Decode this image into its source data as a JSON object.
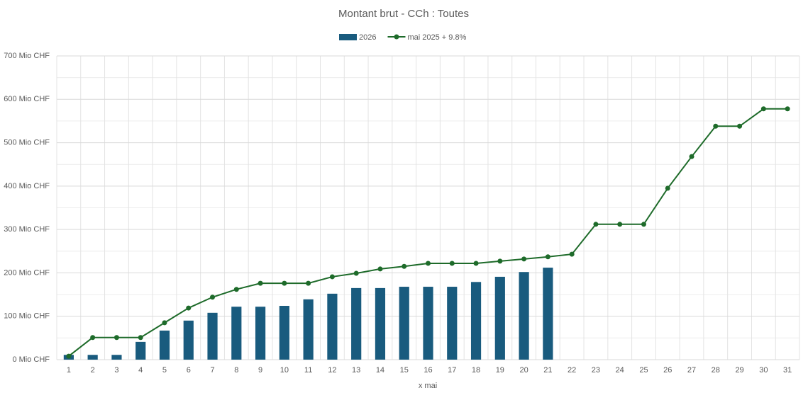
{
  "chart_data": {
    "type": "bar_line",
    "title": "Montant brut - CCh : Toutes",
    "x_label": "x mai",
    "categories": [
      "1",
      "2",
      "3",
      "4",
      "5",
      "6",
      "7",
      "8",
      "9",
      "10",
      "11",
      "12",
      "13",
      "14",
      "15",
      "16",
      "17",
      "18",
      "19",
      "20",
      "21",
      "22",
      "23",
      "24",
      "25",
      "26",
      "27",
      "28",
      "29",
      "30",
      "31"
    ],
    "series": [
      {
        "name": "2026",
        "type": "bar",
        "color": "#195b7e",
        "values": [
          11,
          11,
          11,
          41,
          67,
          90,
          108,
          122,
          122,
          124,
          139,
          152,
          165,
          165,
          168,
          168,
          168,
          179,
          191,
          202,
          212,
          null,
          null,
          null,
          null,
          null,
          null,
          null,
          null,
          null,
          null
        ]
      },
      {
        "name": "mai 2025 + 9.8%",
        "type": "line",
        "color": "#1e6b2a",
        "values": [
          8,
          51,
          51,
          51,
          85,
          119,
          144,
          162,
          176,
          176,
          176,
          191,
          199,
          209,
          215,
          222,
          222,
          222,
          227,
          232,
          237,
          243,
          312,
          312,
          312,
          395,
          468,
          538,
          538,
          578,
          578
        ]
      }
    ],
    "ylim": [
      0,
      700
    ],
    "yticks": [
      {
        "value": 0,
        "label": "0 Mio CHF"
      },
      {
        "value": 100,
        "label": "100 Mio CHF"
      },
      {
        "value": 200,
        "label": "200 Mio CHF"
      },
      {
        "value": 300,
        "label": "300 Mio CHF"
      },
      {
        "value": 400,
        "label": "400 Mio CHF"
      },
      {
        "value": 500,
        "label": "500 Mio CHF"
      },
      {
        "value": 600,
        "label": "600 Mio CHF"
      },
      {
        "value": 700,
        "label": "700 Mio CHF"
      }
    ],
    "grid": true,
    "legend": "top"
  }
}
